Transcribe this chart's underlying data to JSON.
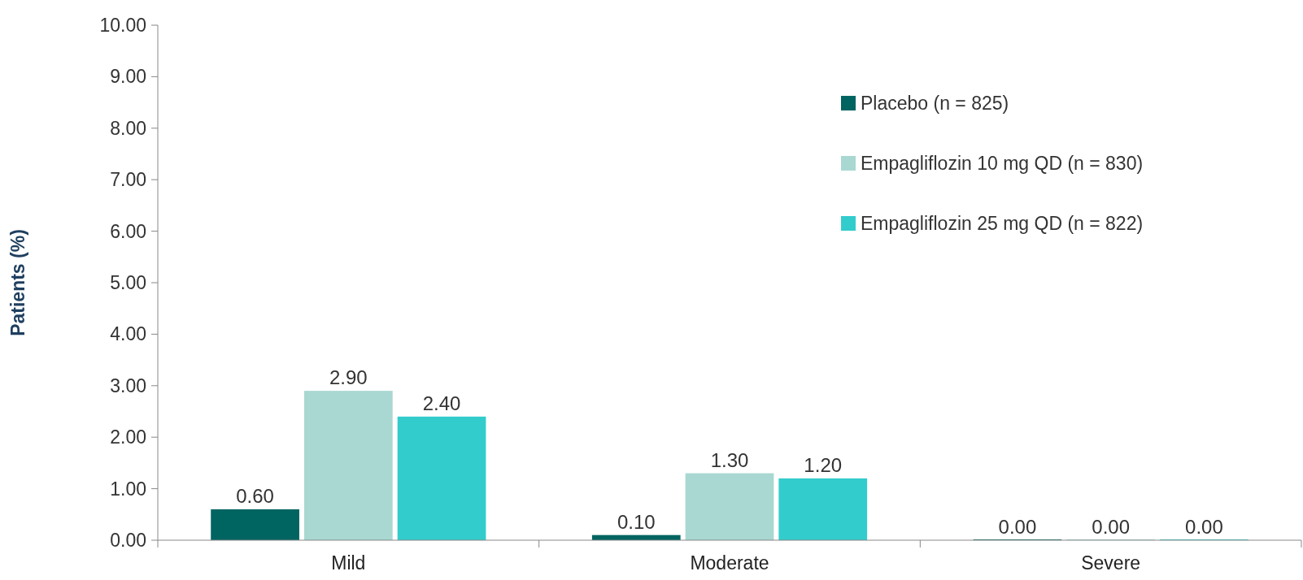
{
  "chart_data": {
    "type": "bar",
    "ylabel": "Patients (%)",
    "categories": [
      "Mild",
      "Moderate",
      "Severe"
    ],
    "series": [
      {
        "name": "Placebo (n = 825)",
        "color": "#006461",
        "values": [
          0.6,
          0.1,
          0
        ],
        "value_labels": [
          "0.60",
          "0.10",
          "0.00"
        ]
      },
      {
        "name": "Empagliflozin 10 mg QD (n = 830)",
        "color": "#a8d8d1",
        "values": [
          2.9,
          1.3,
          0
        ],
        "value_labels": [
          "2.90",
          "1.30",
          "0.00"
        ]
      },
      {
        "name": "Empagliflozin 25 mg QD (n = 822)",
        "color": "#33cccc",
        "values": [
          2.4,
          1.2,
          0
        ],
        "value_labels": [
          "2.40",
          "1.20",
          "0.00"
        ]
      }
    ],
    "ylim": [
      0,
      10
    ],
    "yticks": [
      {
        "value": 0,
        "label": "0.00"
      },
      {
        "value": 1,
        "label": "1.00"
      },
      {
        "value": 2,
        "label": "2.00"
      },
      {
        "value": 3,
        "label": "3.00"
      },
      {
        "value": 4,
        "label": "4.00"
      },
      {
        "value": 5,
        "label": "5.00"
      },
      {
        "value": 6,
        "label": "6.00"
      },
      {
        "value": 7,
        "label": "7.00"
      },
      {
        "value": 8,
        "label": "8.00"
      },
      {
        "value": 9,
        "label": "9.00"
      },
      {
        "value": 10,
        "label": "10.00"
      }
    ],
    "legend": "top right",
    "grid": false
  }
}
